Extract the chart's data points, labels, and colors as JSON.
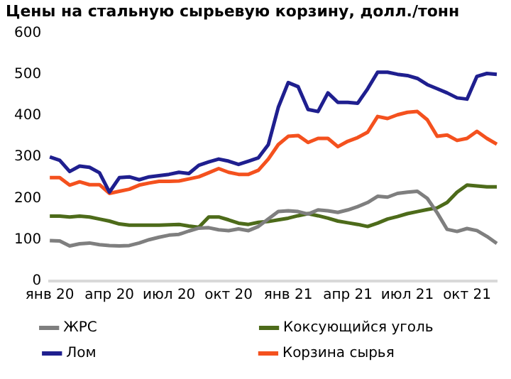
{
  "chart_data": {
    "type": "line",
    "title": "Цены на стальную сырьевую корзину, долл./тонн",
    "categories": [
      "янв 20",
      null,
      null,
      null,
      null,
      null,
      "апр 20",
      null,
      null,
      null,
      null,
      null,
      "июл 20",
      null,
      null,
      null,
      null,
      null,
      "окт 20",
      null,
      null,
      null,
      null,
      null,
      "янв 21",
      null,
      null,
      null,
      null,
      null,
      "апр 21",
      null,
      null,
      null,
      null,
      null,
      "июл 21",
      null,
      null,
      null,
      null,
      null,
      "окт 21",
      null,
      null,
      null
    ],
    "series": [
      {
        "name": "ЖРС",
        "color": "#7f7f7f",
        "values": [
          98,
          97,
          85,
          90,
          92,
          88,
          86,
          85,
          86,
          92,
          100,
          106,
          111,
          113,
          121,
          128,
          129,
          124,
          122,
          126,
          122,
          132,
          150,
          168,
          170,
          168,
          162,
          172,
          170,
          166,
          172,
          180,
          190,
          205,
          203,
          212,
          215,
          217,
          200,
          165,
          125,
          120,
          127,
          122,
          108,
          91
        ]
      },
      {
        "name": "Коксующийся уголь",
        "color": "#4d6b1a",
        "values": [
          157,
          157,
          155,
          157,
          155,
          150,
          145,
          138,
          135,
          135,
          135,
          135,
          136,
          137,
          133,
          130,
          155,
          155,
          148,
          140,
          137,
          142,
          144,
          148,
          152,
          158,
          163,
          158,
          152,
          145,
          141,
          137,
          132,
          140,
          150,
          156,
          163,
          168,
          173,
          177,
          190,
          215,
          232,
          230,
          228,
          228
        ]
      },
      {
        "name": "Лом",
        "color": "#1f1f8f",
        "values": [
          300,
          292,
          265,
          278,
          275,
          262,
          215,
          250,
          252,
          245,
          252,
          255,
          258,
          263,
          260,
          280,
          288,
          295,
          290,
          282,
          290,
          298,
          330,
          420,
          480,
          470,
          415,
          410,
          455,
          432,
          432,
          430,
          465,
          505,
          505,
          500,
          497,
          490,
          475,
          465,
          455,
          443,
          440,
          495,
          502,
          500
        ]
      },
      {
        "name": "Корзина сырья",
        "color": "#f4511e",
        "values": [
          250,
          250,
          232,
          240,
          233,
          233,
          212,
          217,
          222,
          232,
          237,
          241,
          241,
          242,
          247,
          252,
          262,
          272,
          263,
          258,
          258,
          268,
          295,
          330,
          350,
          352,
          335,
          345,
          345,
          325,
          338,
          347,
          360,
          398,
          393,
          402,
          408,
          410,
          390,
          350,
          353,
          340,
          345,
          362,
          345,
          331
        ]
      }
    ],
    "ylim": [
      0,
      600
    ],
    "yticks": [
      0,
      100,
      200,
      300,
      400,
      500,
      600
    ],
    "grid": false,
    "legend": "bottom",
    "marker": "none",
    "line_style": "solid"
  }
}
